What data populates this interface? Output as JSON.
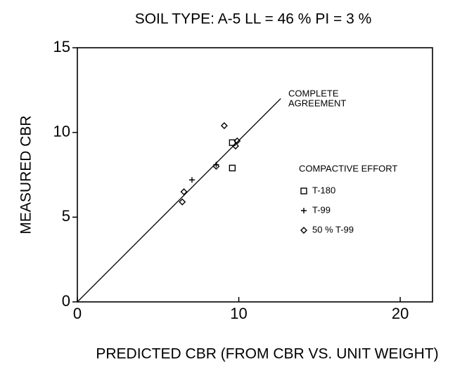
{
  "chart_data": {
    "type": "scatter",
    "title": "SOIL TYPE: A-5    LL = 46 %  PI = 3 %",
    "x_label": "PREDICTED CBR (FROM CBR VS. UNIT WEIGHT)",
    "y_label": "MEASURED CBR",
    "xlim": [
      0,
      22
    ],
    "ylim": [
      0,
      15
    ],
    "xticks": [
      0,
      10,
      20
    ],
    "yticks": [
      0,
      5,
      10,
      15
    ],
    "legend_title": "COMPACTIVE EFFORT",
    "annotation": [
      "COMPLETE",
      "AGREEMENT"
    ],
    "reference_line": {
      "x": [
        0,
        12.6
      ],
      "y": [
        0,
        12
      ]
    },
    "series": [
      {
        "name": "T-180",
        "marker": "square",
        "color": "#000000",
        "x": [
          9.6,
          9.6
        ],
        "values": [
          7.9,
          9.4
        ]
      },
      {
        "name": "T-99",
        "marker": "plus",
        "color": "#000000",
        "x": [
          7.1,
          8.6
        ],
        "values": [
          7.2,
          8.1
        ]
      },
      {
        "name": "50 % T-99",
        "marker": "diamond",
        "color": "#000000",
        "x": [
          6.6,
          6.5,
          9.1,
          8.6,
          9.8,
          9.9
        ],
        "values": [
          6.5,
          5.9,
          10.4,
          8.0,
          9.2,
          9.5
        ]
      }
    ]
  }
}
